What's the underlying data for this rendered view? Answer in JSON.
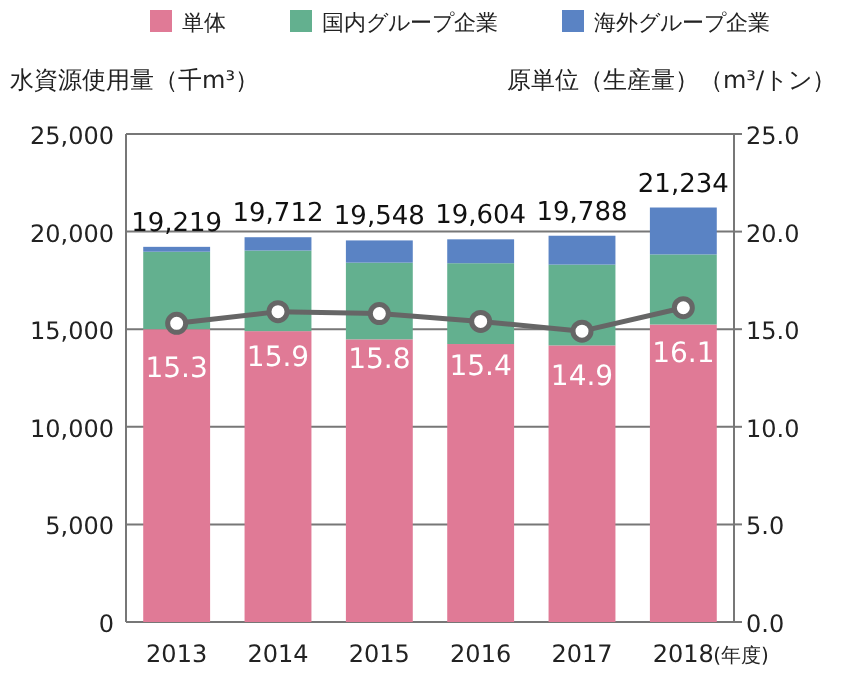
{
  "chart_data": {
    "type": "bar",
    "stacked": true,
    "categories": [
      "2013",
      "2014",
      "2015",
      "2016",
      "2017",
      "2018"
    ],
    "xlabel": "(年度)",
    "ylabel": "水資源使用量（千m³）",
    "y2label": "原単位（生産量）（m³/トン）",
    "series": [
      {
        "name": "単体",
        "color": "#e07a96",
        "values": [
          15000,
          14900,
          14480,
          14240,
          14170,
          15240
        ]
      },
      {
        "name": "国内グループ企業",
        "color": "#63b08f",
        "values": [
          3970,
          4130,
          3930,
          4140,
          4140,
          3590
        ]
      },
      {
        "name": "海外グループ企業",
        "color": "#5a83c4",
        "values": [
          249,
          682,
          1138,
          1224,
          1478,
          2404
        ]
      },
      {
        "type": "line",
        "axis": "y2",
        "color": "#666666",
        "marker": "circle",
        "values": [
          15.3,
          15.9,
          15.8,
          15.4,
          14.9,
          16.1
        ],
        "value_labels": [
          "15.3",
          "15.9",
          "15.8",
          "15.4",
          "14.9",
          "16.1"
        ]
      }
    ],
    "totals": [
      "19,219",
      "19,712",
      "19,548",
      "19,604",
      "19,788",
      "21,234"
    ],
    "ylim": [
      0,
      25000
    ],
    "yticks": [
      {
        "value": 0,
        "label": "0"
      },
      {
        "value": 5000,
        "label": "5,000"
      },
      {
        "value": 10000,
        "label": "10,000"
      },
      {
        "value": 15000,
        "label": "15,000"
      },
      {
        "value": 20000,
        "label": "20,000"
      },
      {
        "value": 25000,
        "label": "25,000"
      }
    ],
    "y2lim": [
      0,
      25
    ],
    "y2ticks": [
      {
        "value": 0,
        "label": "0.0"
      },
      {
        "value": 5,
        "label": "5.0"
      },
      {
        "value": 10,
        "label": "10.0"
      },
      {
        "value": 15,
        "label": "15.0"
      },
      {
        "value": 20,
        "label": "20.0"
      },
      {
        "value": 25,
        "label": "25.0"
      }
    ],
    "grid": "y",
    "legend": "top"
  }
}
